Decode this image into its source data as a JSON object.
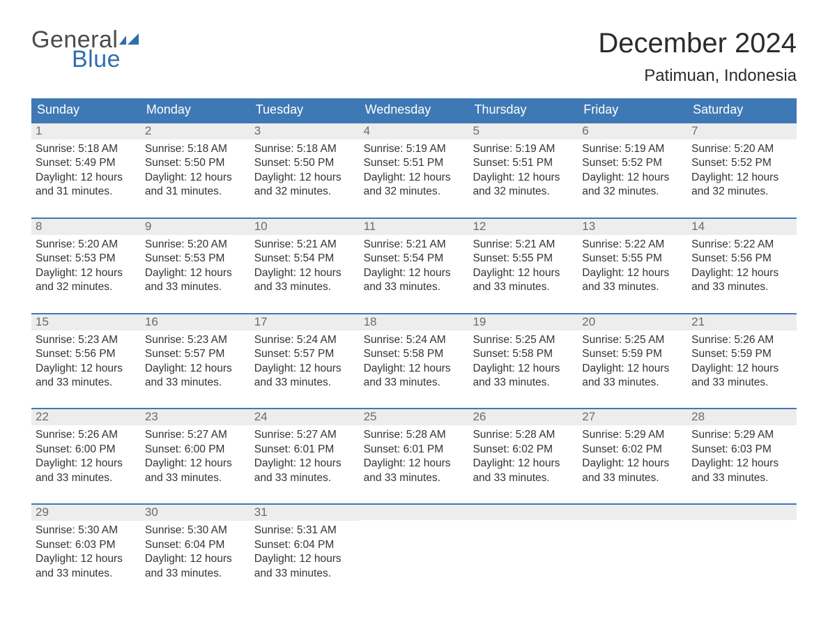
{
  "brand": {
    "word1": "General",
    "word2": "Blue",
    "word1_color": "#4a4a4a",
    "word2_color": "#2f6fad",
    "flag_color": "#2f6fad"
  },
  "title": {
    "month_year": "December 2024",
    "location": "Patimuan, Indonesia"
  },
  "colors": {
    "header_bar": "#3e79b5",
    "header_text": "#ffffff",
    "daynum_bg": "#ededed",
    "daynum_text": "#6b6b6b",
    "body_text": "#333333",
    "row_border": "#3e79b5",
    "page_bg": "#ffffff"
  },
  "typography": {
    "title_fontsize": 40,
    "location_fontsize": 24,
    "dow_fontsize": 18,
    "daynum_fontsize": 17,
    "body_fontsize": 15.5
  },
  "calendar": {
    "type": "table",
    "days_of_week": [
      "Sunday",
      "Monday",
      "Tuesday",
      "Wednesday",
      "Thursday",
      "Friday",
      "Saturday"
    ],
    "labels": {
      "sunrise_prefix": "Sunrise: ",
      "sunset_prefix": "Sunset: ",
      "daylight_prefix": "Daylight: "
    },
    "weeks": [
      [
        {
          "day": "1",
          "sunrise": "5:18 AM",
          "sunset": "5:49 PM",
          "daylight": "12 hours and 31 minutes."
        },
        {
          "day": "2",
          "sunrise": "5:18 AM",
          "sunset": "5:50 PM",
          "daylight": "12 hours and 31 minutes."
        },
        {
          "day": "3",
          "sunrise": "5:18 AM",
          "sunset": "5:50 PM",
          "daylight": "12 hours and 32 minutes."
        },
        {
          "day": "4",
          "sunrise": "5:19 AM",
          "sunset": "5:51 PM",
          "daylight": "12 hours and 32 minutes."
        },
        {
          "day": "5",
          "sunrise": "5:19 AM",
          "sunset": "5:51 PM",
          "daylight": "12 hours and 32 minutes."
        },
        {
          "day": "6",
          "sunrise": "5:19 AM",
          "sunset": "5:52 PM",
          "daylight": "12 hours and 32 minutes."
        },
        {
          "day": "7",
          "sunrise": "5:20 AM",
          "sunset": "5:52 PM",
          "daylight": "12 hours and 32 minutes."
        }
      ],
      [
        {
          "day": "8",
          "sunrise": "5:20 AM",
          "sunset": "5:53 PM",
          "daylight": "12 hours and 32 minutes."
        },
        {
          "day": "9",
          "sunrise": "5:20 AM",
          "sunset": "5:53 PM",
          "daylight": "12 hours and 33 minutes."
        },
        {
          "day": "10",
          "sunrise": "5:21 AM",
          "sunset": "5:54 PM",
          "daylight": "12 hours and 33 minutes."
        },
        {
          "day": "11",
          "sunrise": "5:21 AM",
          "sunset": "5:54 PM",
          "daylight": "12 hours and 33 minutes."
        },
        {
          "day": "12",
          "sunrise": "5:21 AM",
          "sunset": "5:55 PM",
          "daylight": "12 hours and 33 minutes."
        },
        {
          "day": "13",
          "sunrise": "5:22 AM",
          "sunset": "5:55 PM",
          "daylight": "12 hours and 33 minutes."
        },
        {
          "day": "14",
          "sunrise": "5:22 AM",
          "sunset": "5:56 PM",
          "daylight": "12 hours and 33 minutes."
        }
      ],
      [
        {
          "day": "15",
          "sunrise": "5:23 AM",
          "sunset": "5:56 PM",
          "daylight": "12 hours and 33 minutes."
        },
        {
          "day": "16",
          "sunrise": "5:23 AM",
          "sunset": "5:57 PM",
          "daylight": "12 hours and 33 minutes."
        },
        {
          "day": "17",
          "sunrise": "5:24 AM",
          "sunset": "5:57 PM",
          "daylight": "12 hours and 33 minutes."
        },
        {
          "day": "18",
          "sunrise": "5:24 AM",
          "sunset": "5:58 PM",
          "daylight": "12 hours and 33 minutes."
        },
        {
          "day": "19",
          "sunrise": "5:25 AM",
          "sunset": "5:58 PM",
          "daylight": "12 hours and 33 minutes."
        },
        {
          "day": "20",
          "sunrise": "5:25 AM",
          "sunset": "5:59 PM",
          "daylight": "12 hours and 33 minutes."
        },
        {
          "day": "21",
          "sunrise": "5:26 AM",
          "sunset": "5:59 PM",
          "daylight": "12 hours and 33 minutes."
        }
      ],
      [
        {
          "day": "22",
          "sunrise": "5:26 AM",
          "sunset": "6:00 PM",
          "daylight": "12 hours and 33 minutes."
        },
        {
          "day": "23",
          "sunrise": "5:27 AM",
          "sunset": "6:00 PM",
          "daylight": "12 hours and 33 minutes."
        },
        {
          "day": "24",
          "sunrise": "5:27 AM",
          "sunset": "6:01 PM",
          "daylight": "12 hours and 33 minutes."
        },
        {
          "day": "25",
          "sunrise": "5:28 AM",
          "sunset": "6:01 PM",
          "daylight": "12 hours and 33 minutes."
        },
        {
          "day": "26",
          "sunrise": "5:28 AM",
          "sunset": "6:02 PM",
          "daylight": "12 hours and 33 minutes."
        },
        {
          "day": "27",
          "sunrise": "5:29 AM",
          "sunset": "6:02 PM",
          "daylight": "12 hours and 33 minutes."
        },
        {
          "day": "28",
          "sunrise": "5:29 AM",
          "sunset": "6:03 PM",
          "daylight": "12 hours and 33 minutes."
        }
      ],
      [
        {
          "day": "29",
          "sunrise": "5:30 AM",
          "sunset": "6:03 PM",
          "daylight": "12 hours and 33 minutes."
        },
        {
          "day": "30",
          "sunrise": "5:30 AM",
          "sunset": "6:04 PM",
          "daylight": "12 hours and 33 minutes."
        },
        {
          "day": "31",
          "sunrise": "5:31 AM",
          "sunset": "6:04 PM",
          "daylight": "12 hours and 33 minutes."
        },
        null,
        null,
        null,
        null
      ]
    ]
  }
}
